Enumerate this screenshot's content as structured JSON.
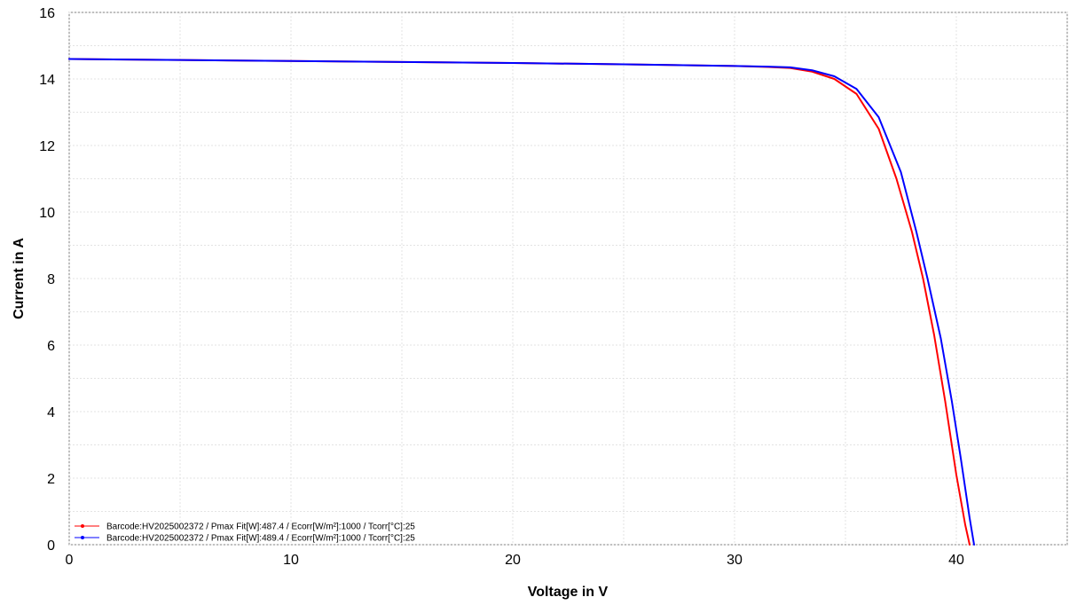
{
  "chart_data": {
    "type": "line",
    "title": "",
    "xlabel": "Voltage in V",
    "ylabel": "Current in A",
    "xlim": [
      0,
      45
    ],
    "ylim": [
      0,
      16
    ],
    "xticks": [
      0,
      10,
      20,
      30,
      40
    ],
    "yticks": [
      0,
      2,
      4,
      6,
      8,
      10,
      12,
      14,
      16
    ],
    "grid": true,
    "legend_position": "bottom-left",
    "series": [
      {
        "name": "Barcode:HV2025002372 / Pmax Fit[W]:487.4 / Ecorr[W/m²]:1000 / Tcorr[°C]:25",
        "color": "#ff0000",
        "x": [
          0,
          5,
          10,
          15,
          20,
          25,
          30,
          31.5,
          32.5,
          33.5,
          34.5,
          35.5,
          36.5,
          37.3,
          38.0,
          38.5,
          39.0,
          39.5,
          40.0,
          40.4,
          40.6
        ],
        "y": [
          14.6,
          14.57,
          14.54,
          14.51,
          14.48,
          14.44,
          14.39,
          14.36,
          14.33,
          14.22,
          14.0,
          13.55,
          12.5,
          11.0,
          9.4,
          8.0,
          6.3,
          4.3,
          2.1,
          0.6,
          0
        ]
      },
      {
        "name": "Barcode:HV2025002372 / Pmax Fit[W]:489.4 / Ecorr[W/m²]:1000 / Tcorr[°C]:25",
        "color": "#0000ff",
        "x": [
          0,
          5,
          10,
          15,
          20,
          25,
          30,
          31.5,
          32.5,
          33.5,
          34.5,
          35.5,
          36.5,
          37.5,
          38.2,
          38.7,
          39.3,
          39.8,
          40.2,
          40.6,
          40.8
        ],
        "y": [
          14.6,
          14.57,
          14.54,
          14.51,
          14.48,
          14.44,
          14.39,
          14.37,
          14.35,
          14.26,
          14.08,
          13.7,
          12.85,
          11.2,
          9.4,
          8.0,
          6.2,
          4.3,
          2.6,
          0.8,
          0
        ]
      }
    ]
  }
}
